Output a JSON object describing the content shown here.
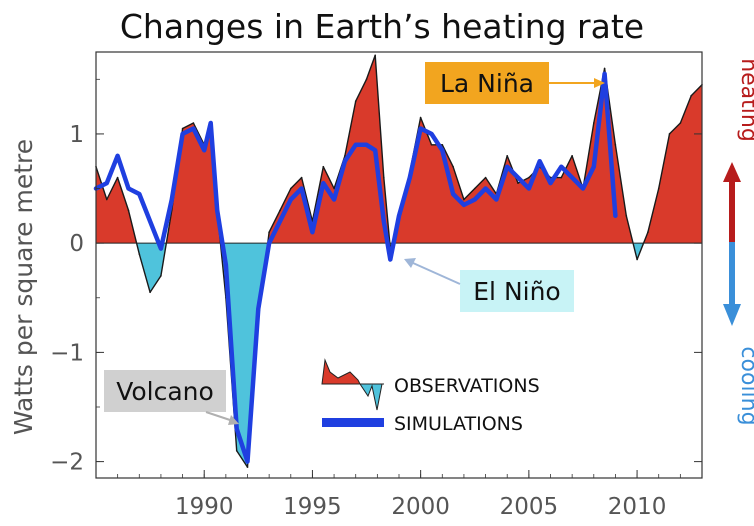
{
  "chart_data": {
    "type": "area",
    "title": "Changes in Earth’s heating rate",
    "xlabel": "",
    "ylabel": "Watts per square metre",
    "xlim": [
      1985.0,
      2013.0
    ],
    "ylim": [
      -2.15,
      1.75
    ],
    "x_ticks": [
      1990,
      1995,
      2000,
      2005,
      2010
    ],
    "y_ticks": [
      {
        "value": 1,
        "label": "1"
      },
      {
        "value": 0,
        "label": "0"
      },
      {
        "value": -1,
        "label": "−1"
      },
      {
        "value": -2,
        "label": "−2"
      }
    ],
    "grid": false,
    "legend_position": "bottom-center",
    "colors": {
      "heating_fill": "#d93a2b",
      "cooling_fill": "#4fc3dc",
      "simulation_line": "#1f3fe0",
      "heating_arrow": "#b71c1c",
      "cooling_arrow": "#3a8fd9",
      "la_nina_box": "#f2a51f",
      "el_nino_box": "#c8f3f6",
      "volcano_box": "#d0d0d0"
    },
    "series": [
      {
        "name": "OBSERVATIONS",
        "x": [
          1985.0,
          1985.5,
          1986.0,
          1986.5,
          1987.0,
          1987.5,
          1988.0,
          1988.5,
          1989.0,
          1989.5,
          1990.0,
          1990.3,
          1990.6,
          1991.0,
          1991.5,
          1992.0,
          1992.5,
          1993.0,
          1993.5,
          1994.0,
          1994.5,
          1995.0,
          1995.5,
          1996.0,
          1996.5,
          1997.0,
          1997.5,
          1997.9,
          1998.3,
          1998.6,
          1999.0,
          1999.5,
          2000.0,
          2000.5,
          2001.0,
          2001.5,
          2002.0,
          2002.5,
          2003.0,
          2003.5,
          2004.0,
          2004.5,
          2005.0,
          2005.5,
          2006.0,
          2006.5,
          2007.0,
          2007.5,
          2008.0,
          2008.5,
          2009.0,
          2009.5,
          2010.0,
          2010.5,
          2011.0,
          2011.5,
          2012.0,
          2012.5,
          2013.0
        ],
        "values": [
          0.7,
          0.4,
          0.6,
          0.3,
          -0.1,
          -0.45,
          -0.3,
          0.3,
          1.05,
          1.1,
          0.9,
          1.0,
          0.3,
          -0.5,
          -1.9,
          -2.05,
          -0.7,
          0.1,
          0.3,
          0.5,
          0.6,
          0.2,
          0.7,
          0.5,
          0.8,
          1.3,
          1.5,
          1.72,
          0.6,
          -0.05,
          0.2,
          0.65,
          1.15,
          0.9,
          0.9,
          0.7,
          0.4,
          0.5,
          0.6,
          0.45,
          0.8,
          0.55,
          0.6,
          0.7,
          0.6,
          0.6,
          0.8,
          0.5,
          1.1,
          1.6,
          0.9,
          0.25,
          -0.15,
          0.1,
          0.5,
          1.0,
          1.1,
          1.35,
          1.45
        ]
      },
      {
        "name": "SIMULATIONS",
        "x": [
          1985.0,
          1985.5,
          1986.0,
          1986.5,
          1987.0,
          1987.5,
          1988.0,
          1988.5,
          1989.0,
          1989.5,
          1990.0,
          1990.3,
          1990.6,
          1991.0,
          1991.5,
          1992.0,
          1992.5,
          1993.0,
          1993.5,
          1994.0,
          1994.5,
          1995.0,
          1995.5,
          1996.0,
          1996.5,
          1997.0,
          1997.5,
          1997.9,
          1998.3,
          1998.6,
          1999.0,
          1999.5,
          2000.0,
          2000.5,
          2001.0,
          2001.5,
          2002.0,
          2002.5,
          2003.0,
          2003.5,
          2004.0,
          2004.5,
          2005.0,
          2005.5,
          2006.0,
          2006.5,
          2007.0,
          2007.5,
          2008.0,
          2008.5,
          2009.0
        ],
        "values": [
          0.5,
          0.55,
          0.8,
          0.5,
          0.45,
          0.2,
          -0.05,
          0.4,
          1.0,
          1.05,
          0.85,
          1.1,
          0.3,
          -0.2,
          -1.7,
          -2.0,
          -0.6,
          0.0,
          0.2,
          0.4,
          0.5,
          0.1,
          0.55,
          0.4,
          0.75,
          0.9,
          0.9,
          0.85,
          0.2,
          -0.15,
          0.25,
          0.6,
          1.05,
          1.0,
          0.85,
          0.45,
          0.35,
          0.4,
          0.5,
          0.4,
          0.7,
          0.6,
          0.5,
          0.75,
          0.55,
          0.7,
          0.6,
          0.5,
          0.7,
          1.55,
          0.25
        ]
      }
    ],
    "side_labels": {
      "top": "heating",
      "bottom": "cooling"
    },
    "annotations": [
      {
        "label": "La Niña",
        "x": 2008.4,
        "y": 1.55
      },
      {
        "label": "El Niño",
        "x": 1998.4,
        "y": -0.18
      },
      {
        "label": "Volcano",
        "x": 1991.7,
        "y": -1.75
      }
    ],
    "legend_entries": [
      "OBSERVATIONS",
      "SIMULATIONS"
    ]
  }
}
